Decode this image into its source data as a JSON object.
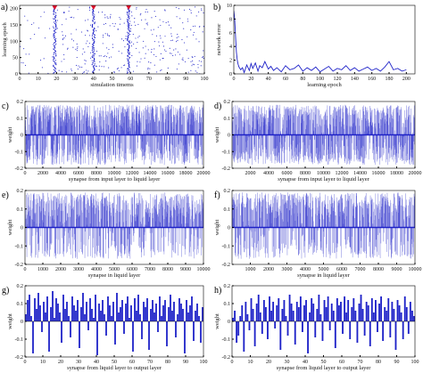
{
  "colors": {
    "data": "#1e22c8",
    "marker": "#e0102a",
    "axis": "#000000"
  },
  "chart_data": [
    {
      "id": "a",
      "type": "scatter",
      "letter": "a)",
      "xlabel": "simulation timems",
      "ylabel": "learning epoch",
      "xlim": [
        0,
        100
      ],
      "ylim": [
        0,
        210
      ],
      "xticks": [
        0,
        10,
        20,
        30,
        40,
        50,
        60,
        70,
        80,
        90,
        100
      ],
      "yticks": [
        0,
        50,
        100,
        150,
        200
      ],
      "bursts": [
        19,
        40,
        59
      ],
      "markers": [
        19,
        40,
        59
      ],
      "grid": false
    },
    {
      "id": "b",
      "type": "line",
      "letter": "b)",
      "xlabel": "learning epoch",
      "ylabel": "network error",
      "xlim": [
        0,
        210
      ],
      "ylim": [
        0,
        10
      ],
      "xticks": [
        0,
        20,
        40,
        60,
        80,
        100,
        120,
        140,
        160,
        180,
        200
      ],
      "yticks": [
        0,
        2,
        4,
        6,
        8,
        10
      ],
      "series": [
        {
          "x": [
            0,
            1,
            2,
            3,
            4,
            5,
            6,
            8,
            10,
            12,
            15,
            18,
            20,
            22,
            25,
            28,
            30,
            33,
            36,
            40,
            43,
            46,
            50,
            55,
            60,
            65,
            70,
            75,
            80,
            85,
            90,
            95,
            100,
            105,
            110,
            115,
            120,
            125,
            130,
            135,
            140,
            145,
            150,
            155,
            160,
            165,
            170,
            175,
            180,
            185,
            190,
            195,
            200
          ],
          "y": [
            9.2,
            8.0,
            5.5,
            3.2,
            2.0,
            1.4,
            1.0,
            0.6,
            0.9,
            0.2,
            1.3,
            0.5,
            1.5,
            0.8,
            1.6,
            0.4,
            1.2,
            0.9,
            1.8,
            0.7,
            1.1,
            0.5,
            0.9,
            0.3,
            1.2,
            0.6,
            0.8,
            1.3,
            0.4,
            0.9,
            0.5,
            1.0,
            0.3,
            0.7,
            1.1,
            0.4,
            0.8,
            0.6,
            1.2,
            0.5,
            0.9,
            0.4,
            0.7,
            1.0,
            0.5,
            0.8,
            0.4,
            1.0,
            1.8,
            0.6,
            0.8,
            0.4,
            0.6
          ]
        }
      ],
      "grid": false
    },
    {
      "id": "c",
      "type": "bar",
      "letter": "c)",
      "xlabel": "synapse from input layer to liquid layer",
      "ylabel": "weight",
      "xlim": [
        0,
        20000
      ],
      "ylim": [
        -0.2,
        0.2
      ],
      "xticks": [
        0,
        2000,
        4000,
        6000,
        8000,
        10000,
        12000,
        14000,
        16000,
        18000,
        20000
      ],
      "yticks": [
        -0.2,
        -0.1,
        0,
        0.1,
        0.2
      ],
      "dense": true,
      "density": 900,
      "seed": 11,
      "neg_fraction": 0.47,
      "range": [
        -0.18,
        0.18
      ]
    },
    {
      "id": "d",
      "type": "bar",
      "letter": "d)",
      "xlabel": "synapse from input layer to liquid layer",
      "ylabel": "weight",
      "xlim": [
        0,
        20000
      ],
      "ylim": [
        -0.2,
        0.2
      ],
      "xticks": [
        2000,
        4000,
        6000,
        8000,
        10000,
        12000,
        14000,
        16000,
        18000,
        20000
      ],
      "yticks": [
        -0.2,
        -0.1,
        0,
        0.1,
        0.2
      ],
      "dense": true,
      "density": 900,
      "seed": 23,
      "neg_fraction": 0.47,
      "range": [
        -0.18,
        0.18
      ]
    },
    {
      "id": "e",
      "type": "bar",
      "letter": "e)",
      "xlabel": "synapse in liquid layer",
      "ylabel": "weight",
      "xlim": [
        0,
        10000
      ],
      "ylim": [
        -0.2,
        0.2
      ],
      "xticks": [
        0,
        1000,
        2000,
        3000,
        4000,
        5000,
        6000,
        7000,
        8000,
        9000,
        10000
      ],
      "yticks": [
        -0.2,
        -0.1,
        0,
        0.1,
        0.2
      ],
      "dense": true,
      "density": 700,
      "seed": 37,
      "neg_fraction": 0.35,
      "range": [
        -0.17,
        0.19
      ]
    },
    {
      "id": "f",
      "type": "bar",
      "letter": "f)",
      "xlabel": "synapse in liquid layer",
      "ylabel": "weight",
      "xlim": [
        0,
        10000
      ],
      "ylim": [
        -0.2,
        0.2
      ],
      "xticks": [
        1000,
        2000,
        3000,
        4000,
        5000,
        6000,
        7000,
        8000,
        9000,
        10000
      ],
      "yticks": [
        -0.2,
        -0.1,
        0,
        0.1,
        0.2
      ],
      "dense": true,
      "density": 700,
      "seed": 51,
      "neg_fraction": 0.35,
      "range": [
        -0.17,
        0.19
      ]
    },
    {
      "id": "g",
      "type": "bar",
      "letter": "g)",
      "xlabel": "synapse from liquid layer to output layer",
      "ylabel": "weight",
      "xlim": [
        0,
        100
      ],
      "ylim": [
        -0.2,
        0.2
      ],
      "xticks": [
        0,
        10,
        20,
        30,
        40,
        50,
        60,
        70,
        80,
        90,
        100
      ],
      "yticks": [
        -0.2,
        -0.1,
        0,
        0.1,
        0.2
      ],
      "values": [
        0.04,
        0.12,
        0.15,
        0.03,
        -0.18,
        0.13,
        0.07,
        0.16,
        0.09,
        -0.06,
        0.11,
        0.05,
        0.14,
        -0.17,
        0.08,
        0.17,
        0.02,
        0.13,
        0.1,
        0.05,
        -0.12,
        0.15,
        0.07,
        0.11,
        0.03,
        -0.09,
        0.14,
        0.09,
        0.06,
        0.12,
        -0.15,
        0.08,
        0.16,
        0.04,
        0.11,
        -0.05,
        0.13,
        0.07,
        0.02,
        0.15,
        -0.19,
        0.1,
        0.06,
        0.12,
        0.04,
        -0.08,
        0.14,
        0.09,
        0.03,
        0.11,
        -0.13,
        0.16,
        0.05,
        0.08,
        0.12,
        -0.07,
        0.1,
        0.14,
        0.02,
        0.09,
        -0.17,
        0.13,
        0.06,
        0.15,
        0.04,
        -0.1,
        0.11,
        0.08,
        0.13,
        -0.16,
        0.07,
        0.12,
        0.05,
        0.1,
        -0.06,
        0.14,
        0.03,
        0.09,
        0.12,
        -0.14,
        0.08,
        0.15,
        0.06,
        0.11,
        -0.09,
        0.04,
        0.13,
        0.1,
        0.07,
        -0.18,
        0.12,
        0.05,
        0.09,
        0.14,
        -0.11,
        0.06,
        0.1,
        0.03,
        -0.12,
        0.08
      ]
    },
    {
      "id": "h",
      "type": "bar",
      "letter": "h)",
      "xlabel": "synapse from liquid layer to output layer",
      "ylabel": "weight",
      "xlim": [
        0,
        100
      ],
      "ylim": [
        -0.2,
        0.2
      ],
      "xticks": [
        0,
        10,
        20,
        30,
        40,
        50,
        60,
        70,
        80,
        90,
        100
      ],
      "yticks": [
        -0.2,
        -0.1,
        0,
        0.1,
        0.2
      ],
      "values": [
        0.02,
        0.06,
        -0.12,
        -0.08,
        0.03,
        0.09,
        -0.17,
        0.11,
        0.04,
        -0.05,
        0.13,
        0.07,
        -0.14,
        0.1,
        0.15,
        0.05,
        -0.07,
        0.12,
        0.08,
        -0.1,
        0.14,
        0.06,
        0.11,
        -0.04,
        0.09,
        0.13,
        -0.16,
        0.07,
        0.12,
        0.03,
        -0.08,
        0.15,
        0.1,
        0.06,
        -0.13,
        0.11,
        0.08,
        0.14,
        -0.06,
        0.09,
        0.12,
        -0.18,
        0.05,
        0.13,
        0.1,
        -0.09,
        0.07,
        0.15,
        0.04,
        -0.11,
        0.12,
        0.08,
        0.14,
        -0.05,
        0.1,
        0.06,
        -0.15,
        0.13,
        0.09,
        0.11,
        -0.07,
        0.14,
        0.05,
        0.12,
        -0.1,
        0.08,
        0.13,
        0.06,
        -0.12,
        0.1,
        0.15,
        0.07,
        -0.08,
        0.11,
        0.09,
        -0.14,
        0.13,
        0.05,
        0.12,
        -0.06,
        0.1,
        0.14,
        -0.11,
        0.08,
        0.06,
        0.13,
        -0.09,
        0.11,
        0.07,
        -0.16,
        0.12,
        0.09,
        0.05,
        -0.1,
        0.14,
        0.08,
        -0.07,
        0.11,
        0.06,
        0.03
      ]
    }
  ]
}
